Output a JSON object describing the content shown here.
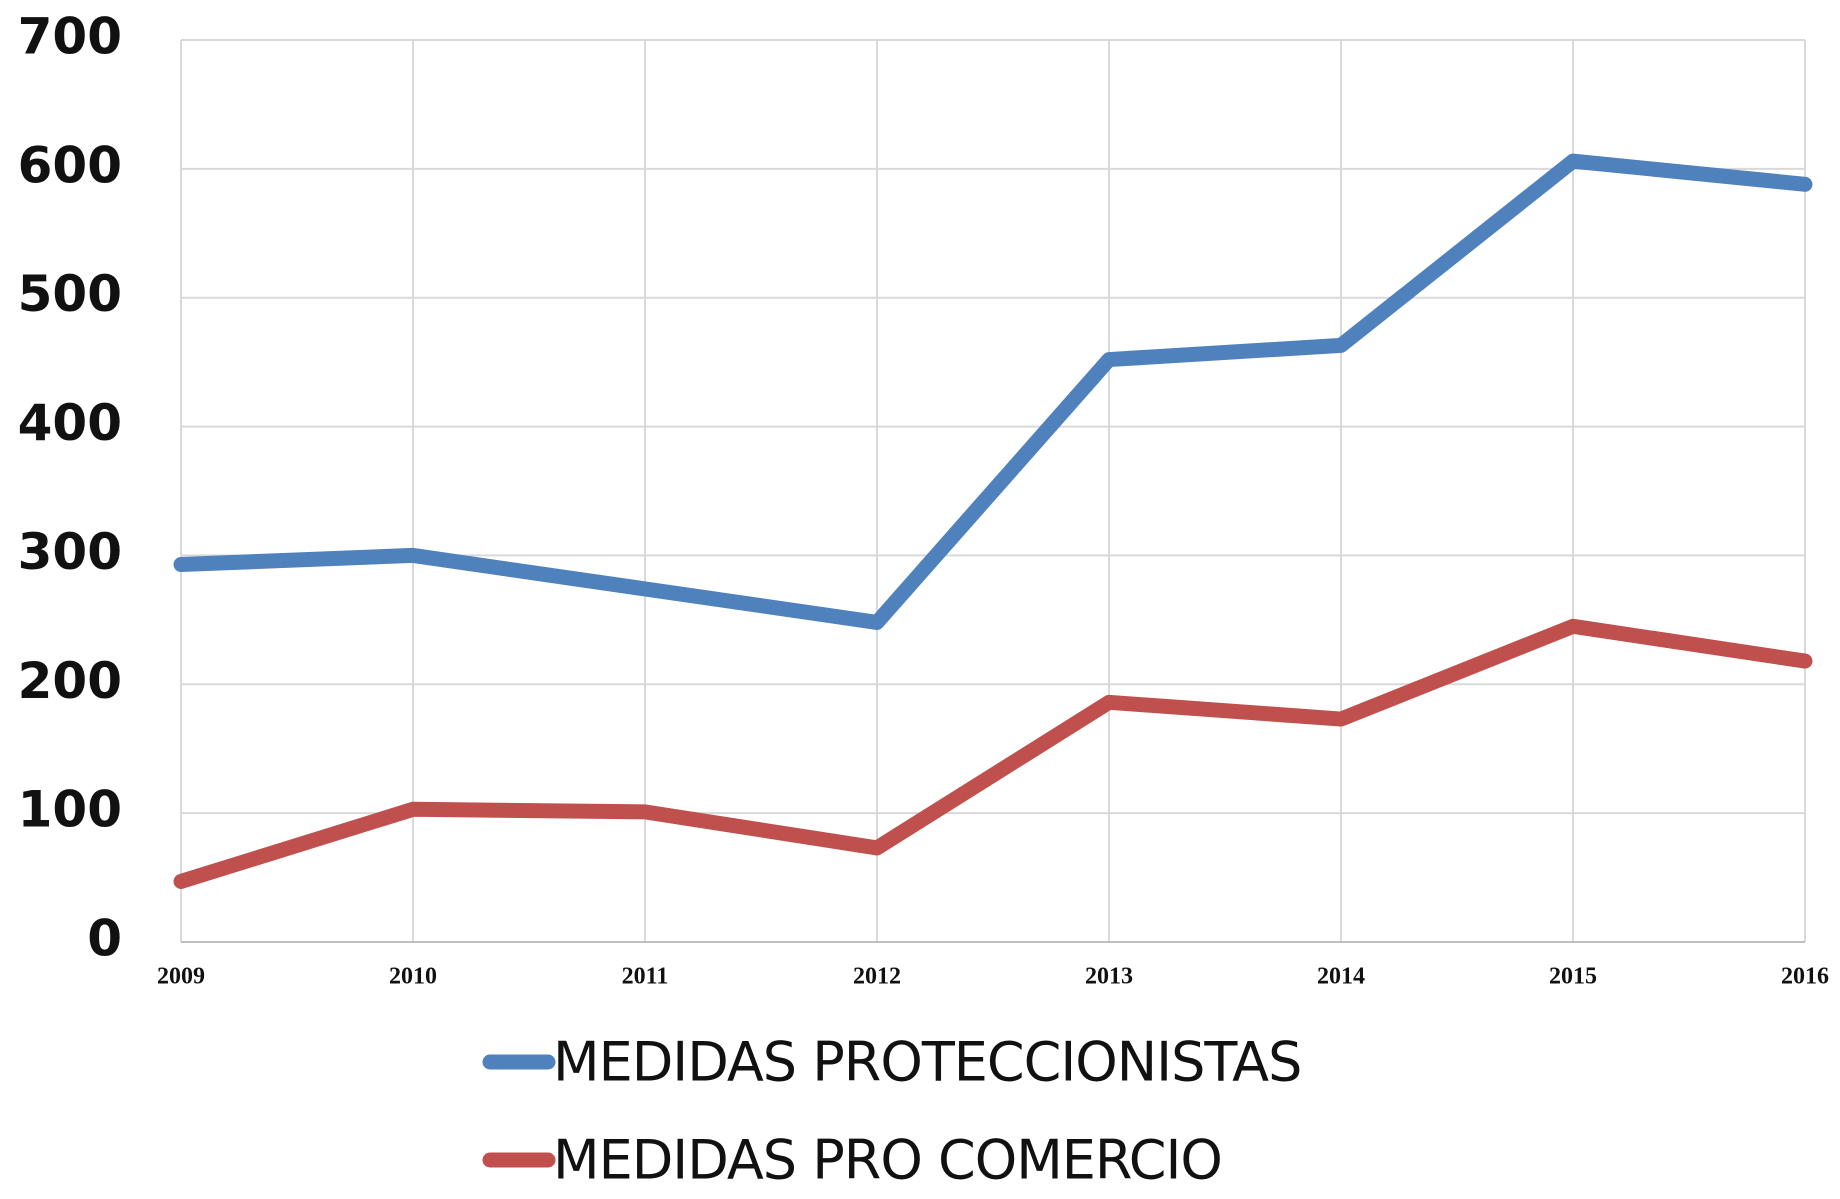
{
  "chart_data": {
    "type": "line",
    "categories": [
      "2009",
      "2010",
      "2011",
      "2012",
      "2013",
      "2014",
      "2015",
      "2016"
    ],
    "series": [
      {
        "name": "MEDIDAS PROTECCIONISTAS",
        "color": "#4f81bd",
        "values": [
          293,
          300,
          274,
          248,
          452,
          463,
          606,
          588
        ]
      },
      {
        "name": "MEDIDAS PRO COMERCIO",
        "color": "#c0504d",
        "values": [
          47,
          103,
          101,
          73,
          186,
          173,
          245,
          218
        ]
      }
    ],
    "ylim": [
      0,
      700
    ],
    "yticks": [
      0,
      100,
      200,
      300,
      400,
      500,
      600,
      700
    ],
    "grid": true,
    "legend": "bottom"
  }
}
